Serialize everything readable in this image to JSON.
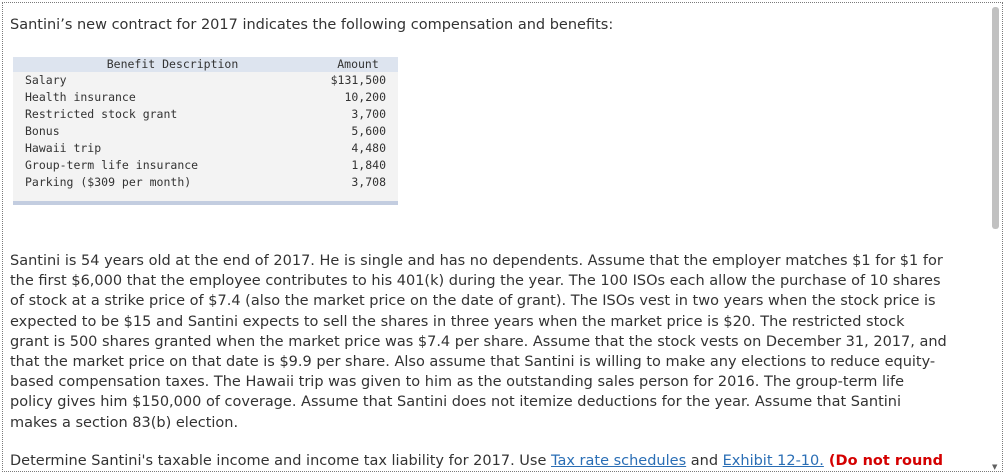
{
  "intro": "Santini’s new contract for 2017 indicates the following compensation and benefits:",
  "table": {
    "headers": {
      "description": "Benefit Description",
      "amount": "Amount"
    },
    "rows": [
      {
        "description": "Salary",
        "amount": "$131,500"
      },
      {
        "description": "Health insurance",
        "amount": "10,200"
      },
      {
        "description": "Restricted stock grant",
        "amount": "3,700"
      },
      {
        "description": "Bonus",
        "amount": "5,600"
      },
      {
        "description": "Hawaii trip",
        "amount": "4,480"
      },
      {
        "description": "Group-term life insurance",
        "amount": "1,840"
      },
      {
        "description": "Parking ($309 per month)",
        "amount": "3,708"
      }
    ]
  },
  "paragraph_lines": [
    "Santini is 54 years old at the end of 2017. He is single and has no dependents. Assume that the employer matches $1 for $1 for",
    "the first $6,000 that the employee contributes to his 401(k) during the year. The 100 ISOs each allow the purchase of 10 shares",
    "of stock at a strike price of $7.4 (also the market price on the date of grant). The ISOs vest in two years when the stock price is",
    "expected to be $15 and Santini expects to sell the shares in three years when the market price is $20. The restricted stock",
    "grant is 500 shares granted when the market price was $7.4 per share. Assume that the stock vests on December 31, 2017, and",
    "that the market price on that date is $9.9 per share. Also assume that Santini is willing to make any elections to reduce equity-",
    "based compensation taxes. The Hawaii trip was given to him as the outstanding sales person for 2016. The group-term life",
    "policy gives him $150,000 of coverage. Assume that Santini does not itemize deductions for the year. Assume that Santini",
    "makes a section 83(b) election."
  ],
  "instruction": {
    "prefix": "Determine Santini's taxable income and income tax liability for 2017. Use ",
    "link1": "Tax rate schedules",
    "middle": " and ",
    "link2": "Exhibit 12-10.",
    "warning": " (Do not round"
  },
  "colors": {
    "link": "#2a6eb5",
    "warning": "#d40000",
    "table_header": "#dde4ef"
  }
}
